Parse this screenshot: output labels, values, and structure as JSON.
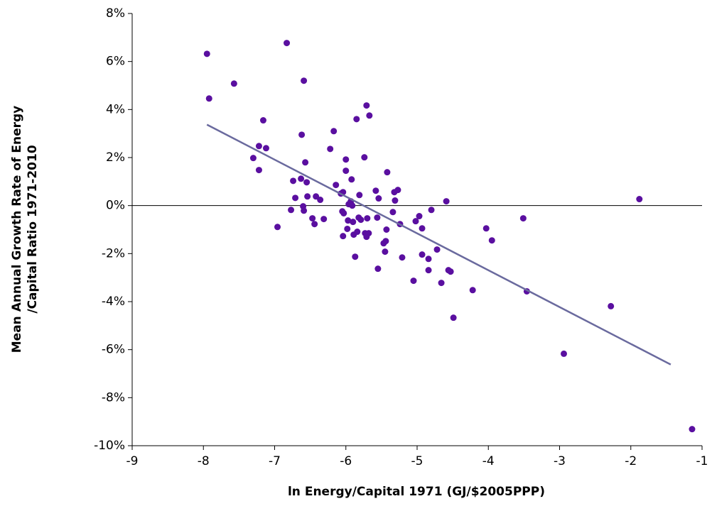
{
  "chart_data": {
    "type": "scatter",
    "xlabel": "ln Energy/Capital 1971 (GJ/$2005PPP)",
    "ylabel": [
      "Mean Annual Growth Rate of Energy",
      "/Capital Ratio 1971-2010"
    ],
    "xlim": [
      -9,
      -1
    ],
    "xticks": [
      -9,
      -8,
      -7,
      -6,
      -5,
      -4,
      -3,
      -2,
      -1
    ],
    "ylim": [
      -10,
      8
    ],
    "yticks": [
      {
        "value": -10,
        "label": "-10%"
      },
      {
        "value": -8,
        "label": "-8%"
      },
      {
        "value": -6,
        "label": "-6%"
      },
      {
        "value": -4,
        "label": "-4%"
      },
      {
        "value": -2,
        "label": "-2%"
      },
      {
        "value": 0,
        "label": "0%"
      },
      {
        "value": 2,
        "label": "2%"
      },
      {
        "value": 4,
        "label": "4%"
      },
      {
        "value": 6,
        "label": "6%"
      },
      {
        "value": 8,
        "label": "8%"
      }
    ],
    "zero_line": true,
    "color": "#5a0fa0",
    "x": [
      -7.95,
      -7.92,
      -7.57,
      -6.83,
      -7.16,
      -7.22,
      -7.12,
      -7.3,
      -7.22,
      -6.96,
      -6.77,
      -6.74,
      -6.71,
      -6.63,
      -6.62,
      -6.59,
      -6.57,
      -6.55,
      -6.6,
      -6.59,
      -6.54,
      -6.47,
      -6.44,
      -6.42,
      -6.36,
      -6.31,
      -6.22,
      -6.17,
      -6.14,
      -6.07,
      -6.04,
      -6.05,
      -6.03,
      -6.04,
      -6.0,
      -6.0,
      -5.98,
      -5.97,
      -5.96,
      -5.93,
      -5.92,
      -5.91,
      -5.9,
      -5.89,
      -5.87,
      -5.85,
      -5.84,
      -5.82,
      -5.81,
      -5.79,
      -5.74,
      -5.71,
      -5.67,
      -5.73,
      -5.71,
      -5.68,
      -5.7,
      -5.58,
      -5.56,
      -5.55,
      -5.54,
      -5.47,
      -5.44,
      -5.45,
      -5.43,
      -5.42,
      -5.34,
      -5.32,
      -5.31,
      -5.27,
      -5.24,
      -5.21,
      -5.05,
      -5.02,
      -4.97,
      -4.93,
      -4.93,
      -4.84,
      -4.84,
      -4.8,
      -4.72,
      -4.66,
      -4.59,
      -4.56,
      -4.53,
      -4.49,
      -4.22,
      -4.03,
      -3.95,
      -3.51,
      -3.46,
      -2.94,
      -2.28,
      -1.88,
      -1.14
    ],
    "values": [
      6.32,
      4.46,
      5.08,
      6.77,
      3.55,
      2.48,
      2.39,
      1.98,
      1.48,
      -0.89,
      -0.18,
      1.03,
      0.32,
      1.12,
      2.95,
      5.2,
      1.8,
      0.97,
      -0.03,
      -0.21,
      0.38,
      -0.53,
      -0.77,
      0.38,
      0.24,
      -0.56,
      2.36,
      3.1,
      0.86,
      0.5,
      0.56,
      -0.24,
      -0.32,
      -1.27,
      1.92,
      1.45,
      -0.97,
      -0.62,
      0.06,
      0.18,
      1.09,
      0,
      -0.68,
      -1.21,
      -2.13,
      3.6,
      -1.09,
      -0.5,
      0.44,
      -0.59,
      2.01,
      4.17,
      3.75,
      -1.15,
      -1.3,
      -1.15,
      -0.53,
      0.62,
      -0.5,
      -2.63,
      0.3,
      -1.57,
      -1.48,
      -1.92,
      -1.0,
      1.39,
      -0.27,
      0.56,
      0.21,
      0.65,
      -0.77,
      -2.16,
      -3.13,
      -0.65,
      -0.44,
      -0.95,
      -2.04,
      -2.22,
      -2.69,
      -0.18,
      -1.83,
      -3.22,
      0.18,
      -2.69,
      -2.75,
      -4.67,
      -3.52,
      -0.95,
      -1.45,
      -0.53,
      -3.57,
      -6.17,
      -4.19,
      0.27,
      -9.31
    ],
    "trendline": {
      "x": [
        -7.95,
        -1.44
      ],
      "values": [
        3.37,
        -6.62
      ],
      "color": "#6a6a9e"
    }
  }
}
